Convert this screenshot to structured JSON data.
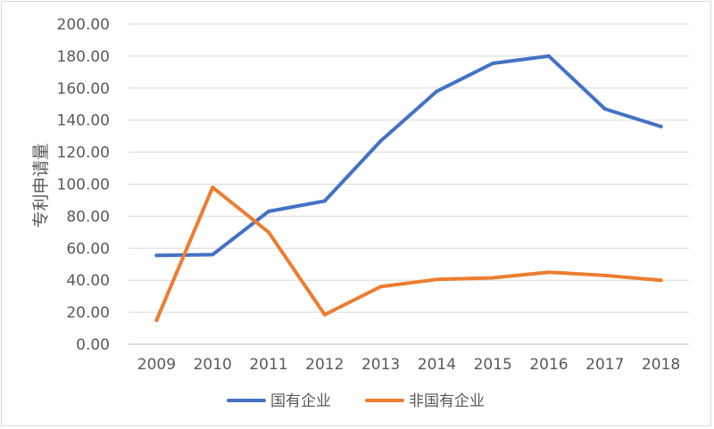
{
  "chart_data": {
    "type": "line",
    "title": "",
    "xlabel": "",
    "ylabel": "专利申请量",
    "categories": [
      "2009",
      "2010",
      "2011",
      "2012",
      "2013",
      "2014",
      "2015",
      "2016",
      "2017",
      "2018"
    ],
    "ylim": [
      0,
      200
    ],
    "y_ticks": [
      "0.00",
      "20.00",
      "40.00",
      "60.00",
      "80.00",
      "100.00",
      "120.00",
      "140.00",
      "160.00",
      "180.00",
      "200.00"
    ],
    "grid": true,
    "legend_position": "bottom",
    "series": [
      {
        "name": "国有企业",
        "color": "#4472c4",
        "values": [
          55.5,
          56,
          83,
          89.5,
          127,
          158,
          175.5,
          180,
          147,
          136
        ]
      },
      {
        "name": "非国有企业",
        "color": "#ed7d31",
        "values": [
          15,
          98,
          70,
          18.5,
          36,
          40.5,
          41.5,
          45,
          43,
          40
        ]
      }
    ]
  }
}
